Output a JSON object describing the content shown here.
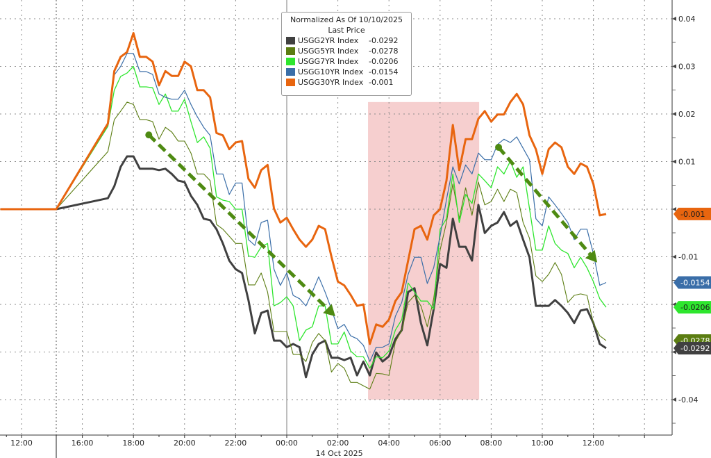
{
  "chart_data": {
    "type": "line",
    "legend": {
      "title": "Normalized As Of 10/10/2025",
      "subtitle": "Last Price",
      "placement": "top-center"
    },
    "x_unit": "hours relative to 00:00 14 Oct 2025",
    "x": [
      -13.4,
      -9.7,
      -7,
      -6.75,
      -6.5,
      -6.25,
      -6,
      -5.75,
      -5.5,
      -5.25,
      -5,
      -4.75,
      -4.5,
      -4.25,
      -4,
      -3.75,
      -3.5,
      -3.25,
      -3,
      -2.75,
      -2.5,
      -2.25,
      -2,
      -1.75,
      -1.5,
      -1.25,
      -1,
      -0.75,
      -0.5,
      -0.25,
      0,
      0.25,
      0.5,
      0.75,
      1,
      1.25,
      1.5,
      1.75,
      2,
      2.25,
      2.5,
      2.75,
      3,
      3.25,
      3.5,
      3.75,
      4,
      4.25,
      4.5,
      4.75,
      5,
      5.25,
      5.5,
      5.75,
      6,
      6.25,
      6.5,
      6.75,
      7,
      7.25,
      7.5,
      7.75,
      8,
      8.25,
      8.5,
      8.75,
      9,
      9.25,
      9.5,
      9.75,
      10,
      10.25,
      10.5,
      10.75,
      11,
      11.25,
      11.5,
      11.75,
      12,
      12.25,
      12.5
    ],
    "x_ticks": [
      {
        "value": -12,
        "label": "12:00"
      },
      {
        "value": -8,
        "label": "16:00"
      },
      {
        "value": -6,
        "label": "18:00"
      },
      {
        "value": -4,
        "label": "20:00"
      },
      {
        "value": -2,
        "label": "22:00"
      },
      {
        "value": 0,
        "label": "00:00"
      },
      {
        "value": 2,
        "label": "02:00"
      },
      {
        "value": 4,
        "label": "04:00"
      },
      {
        "value": 6,
        "label": "06:00"
      },
      {
        "value": 8,
        "label": "08:00"
      },
      {
        "value": 10,
        "label": "10:00"
      },
      {
        "value": 12,
        "label": "12:00"
      },
      {
        "value": 14,
        "label": ""
      }
    ],
    "date_label": "14 Oct 2025",
    "y_ticks": [
      {
        "value": 0.04,
        "label": "0.04"
      },
      {
        "value": 0.03,
        "label": "0.03"
      },
      {
        "value": 0.02,
        "label": "0.02"
      },
      {
        "value": 0.01,
        "label": "0.01"
      },
      {
        "value": 0,
        "label": ""
      },
      {
        "value": -0.01,
        "label": "-0.01"
      },
      {
        "value": -0.02,
        "label": ""
      },
      {
        "value": -0.03,
        "label": ""
      },
      {
        "value": -0.04,
        "label": "-0.04"
      }
    ],
    "ylim": [
      -0.048,
      0.044
    ],
    "y_axis_side": "right",
    "grid": true,
    "shaded_region": {
      "x": [
        3.18,
        7.53
      ],
      "y": [
        -0.04,
        0.0225
      ],
      "color": "#f4c7c7"
    },
    "annotations": [
      {
        "type": "dashed-arrow",
        "from": [
          -5.4,
          0.0156
        ],
        "to": [
          1.9,
          -0.0225
        ],
        "color": "#4e8a12"
      },
      {
        "type": "dashed-arrow",
        "from": [
          8.29,
          0.013
        ],
        "to": [
          12.15,
          -0.0112
        ],
        "color": "#4e8a12"
      }
    ],
    "series": [
      {
        "name": "USGG2YR Index",
        "last": "-0.0292",
        "color": "#404040",
        "tag_text": "#ffffff",
        "width": 3,
        "values": [
          0,
          0,
          0.0023,
          0.0048,
          0.0089,
          0.0111,
          0.0111,
          0.0085,
          0.0085,
          0.0085,
          0.0082,
          0.0085,
          0.0074,
          0.006,
          0.0057,
          0.0028,
          0.0009,
          -0.002,
          -0.0023,
          -0.0042,
          -0.0072,
          -0.0108,
          -0.0126,
          -0.0134,
          -0.0191,
          -0.0261,
          -0.0218,
          -0.0213,
          -0.0276,
          -0.0276,
          -0.029,
          -0.0283,
          -0.029,
          -0.0353,
          -0.0305,
          -0.0283,
          -0.0276,
          -0.0312,
          -0.0312,
          -0.0317,
          -0.0312,
          -0.0349,
          -0.032,
          -0.0349,
          -0.0301,
          -0.032,
          -0.0309,
          -0.0273,
          -0.0254,
          -0.0174,
          -0.0166,
          -0.0239,
          -0.0286,
          -0.021,
          -0.0115,
          -0.0123,
          -0.002,
          -0.0079,
          -0.0079,
          -0.0108,
          0.0009,
          -0.005,
          -0.0035,
          -0.0028,
          -0.0006,
          -0.0035,
          -0.0025,
          -0.0064,
          -0.0101,
          -0.0203,
          -0.0203,
          -0.0203,
          -0.0191,
          -0.0203,
          -0.0218,
          -0.0239,
          -0.0213,
          -0.021,
          -0.0239,
          -0.0283,
          -0.0292
        ]
      },
      {
        "name": "USGG5YR Index",
        "last": "-0.0278",
        "color": "#5b7d12",
        "tag_text": "#ffffff",
        "width": 1.1,
        "values": [
          0,
          0,
          0.0121,
          0.0188,
          0.0206,
          0.0225,
          0.022,
          0.0188,
          0.0188,
          0.0184,
          0.0147,
          0.0172,
          0.0162,
          0.0143,
          0.0143,
          0.0118,
          0.0074,
          0.0074,
          0.006,
          -0.0032,
          -0.0042,
          -0.0057,
          -0.0072,
          -0.0072,
          -0.0159,
          -0.0159,
          -0.0134,
          -0.0174,
          -0.0257,
          -0.0257,
          -0.0257,
          -0.0305,
          -0.0305,
          -0.032,
          -0.028,
          -0.0261,
          -0.0276,
          -0.0342,
          -0.0324,
          -0.0334,
          -0.0364,
          -0.0364,
          -0.0371,
          -0.0378,
          -0.0345,
          -0.0346,
          -0.0349,
          -0.0279,
          -0.0254,
          -0.0196,
          -0.0181,
          -0.0203,
          -0.0247,
          -0.0188,
          -0.0086,
          -0.0028,
          0.0053,
          -0.002,
          0.0045,
          -0.0013,
          0.0057,
          0.0009,
          0.0016,
          0.0042,
          0.0016,
          0.0042,
          0.0035,
          -0.0028,
          -0.0061,
          -0.014,
          -0.0152,
          -0.0137,
          -0.0112,
          -0.0137,
          -0.0196,
          -0.0181,
          -0.0178,
          -0.0181,
          -0.0239,
          -0.0266,
          -0.0276
        ]
      },
      {
        "name": "USGG7YR Index",
        "last": "-0.0206",
        "color": "#2ee62e",
        "tag_text": "#1a1a1a",
        "width": 1.3,
        "values": [
          0,
          0,
          0.0174,
          0.025,
          0.0279,
          0.0286,
          0.03,
          0.0257,
          0.0257,
          0.0255,
          0.022,
          0.0242,
          0.0206,
          0.0206,
          0.0231,
          0.0184,
          0.014,
          0.0152,
          0.0128,
          0.0026,
          0.0019,
          0.0016,
          0,
          0,
          -0.0098,
          -0.0101,
          -0.0079,
          -0.0072,
          -0.0203,
          -0.0196,
          -0.0184,
          -0.0203,
          -0.0276,
          -0.0254,
          -0.0247,
          -0.0203,
          -0.0203,
          -0.0283,
          -0.0283,
          -0.0258,
          -0.0298,
          -0.031,
          -0.031,
          -0.0334,
          -0.031,
          -0.0312,
          -0.0298,
          -0.0254,
          -0.0232,
          -0.0155,
          -0.0174,
          -0.0193,
          -0.0193,
          -0.021,
          -0.0042,
          -0.002,
          0.0074,
          -0.0028,
          0.0031,
          0.0012,
          0.0074,
          0.006,
          0.0045,
          0.0089,
          0.0074,
          0.0101,
          0.0067,
          0.0089,
          0.0001,
          -0.0086,
          -0.0086,
          -0.0035,
          -0.0072,
          -0.0086,
          -0.0093,
          -0.0123,
          -0.0101,
          -0.0123,
          -0.0152,
          -0.0188,
          -0.0206
        ]
      },
      {
        "name": "USGG10YR Index",
        "last": "-0.0154",
        "color": "#3a6ea8",
        "tag_text": "#ffffff",
        "width": 1.2,
        "values": [
          0,
          0,
          0.0177,
          0.0282,
          0.03,
          0.0327,
          0.0327,
          0.0289,
          0.0289,
          0.0283,
          0.0242,
          0.0235,
          0.0231,
          0.0231,
          0.025,
          0.022,
          0.0194,
          0.0172,
          0.0155,
          0.0074,
          0.0074,
          0.0031,
          0.0055,
          0.0055,
          -0.0064,
          -0.0076,
          -0.0028,
          -0.0023,
          -0.0126,
          -0.016,
          -0.0134,
          -0.0181,
          -0.0188,
          -0.0203,
          -0.0174,
          -0.0142,
          -0.0174,
          -0.021,
          -0.0251,
          -0.0242,
          -0.0266,
          -0.0272,
          -0.0286,
          -0.032,
          -0.029,
          -0.029,
          -0.0283,
          -0.0225,
          -0.0196,
          -0.0137,
          -0.0101,
          -0.0101,
          -0.0156,
          -0.0123,
          -0.0057,
          0.002,
          0.0089,
          0.0053,
          0.0093,
          0.0074,
          0.0118,
          0.0104,
          0.0104,
          0.0136,
          0.0147,
          0.014,
          0.0152,
          0.0128,
          0.0104,
          -0.002,
          -0.0035,
          0.0026,
          0.0009,
          -0.0009,
          -0.0028,
          -0.0064,
          -0.0042,
          -0.0042,
          -0.0093,
          -0.016,
          -0.0154
        ]
      },
      {
        "name": "USGG30YR Index",
        "last": "-0.001",
        "color": "#e8650f",
        "tag_text": "#1a1a1a",
        "width": 3,
        "values": [
          0,
          0,
          0.018,
          0.029,
          0.032,
          0.033,
          0.037,
          0.032,
          0.032,
          0.031,
          0.026,
          0.029,
          0.028,
          0.028,
          0.031,
          0.03,
          0.025,
          0.025,
          0.0235,
          0.016,
          0.0155,
          0.0126,
          0.014,
          0.0143,
          0.0064,
          0.0045,
          0.0082,
          0.0093,
          0.0001,
          -0.0028,
          -0.0018,
          -0.0042,
          -0.0064,
          -0.0079,
          -0.0064,
          -0.0035,
          -0.0042,
          -0.01,
          -0.0152,
          -0.016,
          -0.018,
          -0.0203,
          -0.02,
          -0.0283,
          -0.0242,
          -0.0247,
          -0.0232,
          -0.0193,
          -0.0174,
          -0.0108,
          -0.0042,
          -0.0035,
          -0.0064,
          -0.0013,
          0,
          0.006,
          0.0177,
          0.0082,
          0.0147,
          0.0147,
          0.019,
          0.0206,
          0.0184,
          0.0199,
          0.0199,
          0.0225,
          0.0242,
          0.022,
          0.0155,
          0.0126,
          0.0074,
          0.0126,
          0.014,
          0.013,
          0.0089,
          0.0074,
          0.0096,
          0.0089,
          0.0053,
          -0.0013,
          -0.001
        ]
      }
    ]
  }
}
